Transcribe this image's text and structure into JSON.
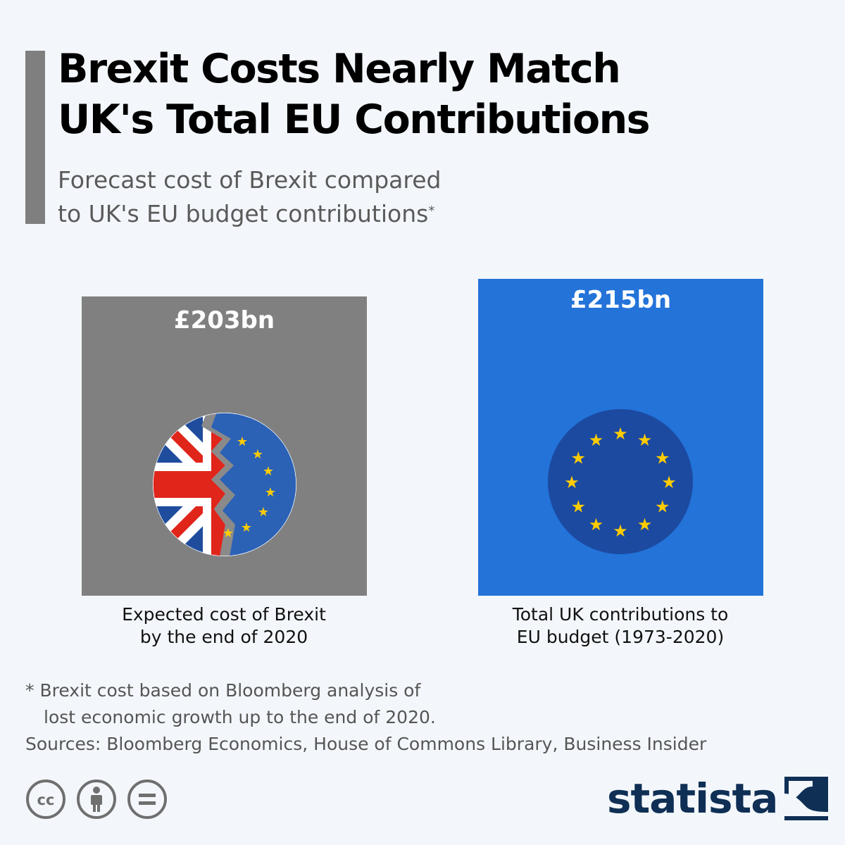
{
  "header": {
    "title_line1": "Brexit Costs Nearly Match",
    "title_line2": "UK's Total EU Contributions",
    "subtitle_line1": "Forecast cost of Brexit compared",
    "subtitle_line2": "to UK's EU budget contributions",
    "subtitle_marker": "*"
  },
  "chart_data": {
    "type": "bar",
    "title": "Brexit Costs Nearly Match UK's Total EU Contributions",
    "subtitle": "Forecast cost of Brexit compared to UK's EU budget contributions*",
    "unit": "£bn",
    "categories": [
      "Expected cost of Brexit by the end of 2020",
      "Total UK contributions to EU budget (1973-2020)"
    ],
    "values": [
      203,
      215
    ],
    "value_labels": [
      "£203bn",
      "£215bn"
    ],
    "representation": "area-scaled squares",
    "colors": [
      "#808080",
      "#2373d9"
    ]
  },
  "bars": [
    {
      "value_label": "£203bn",
      "label_line1": "Expected cost of Brexit",
      "label_line2": "by the end of 2020",
      "icon": "broken-uk-eu-flag-icon"
    },
    {
      "value_label": "£215bn",
      "label_line1": "Total UK contributions to",
      "label_line2": "EU budget (1973-2020)",
      "icon": "eu-flag-icon"
    }
  ],
  "footnote": {
    "note_line1": "* Brexit cost based on Bloomberg analysis of",
    "note_line2": "lost economic growth up to the end of 2020.",
    "sources": "Sources: Bloomberg Economics, House of Commons Library, Business Insider"
  },
  "branding": {
    "license_icons": [
      "cc-icon",
      "attribution-icon",
      "no-derivatives-icon"
    ],
    "logo_text": "statista",
    "logo_color": "#0f2f55"
  },
  "colors": {
    "background": "#f3f7fb",
    "accent_bar": "#7f7f7f",
    "eu_blue": "#2373d9",
    "eu_flag_blue": "#1c4aa1",
    "star_yellow": "#ffcc00"
  }
}
